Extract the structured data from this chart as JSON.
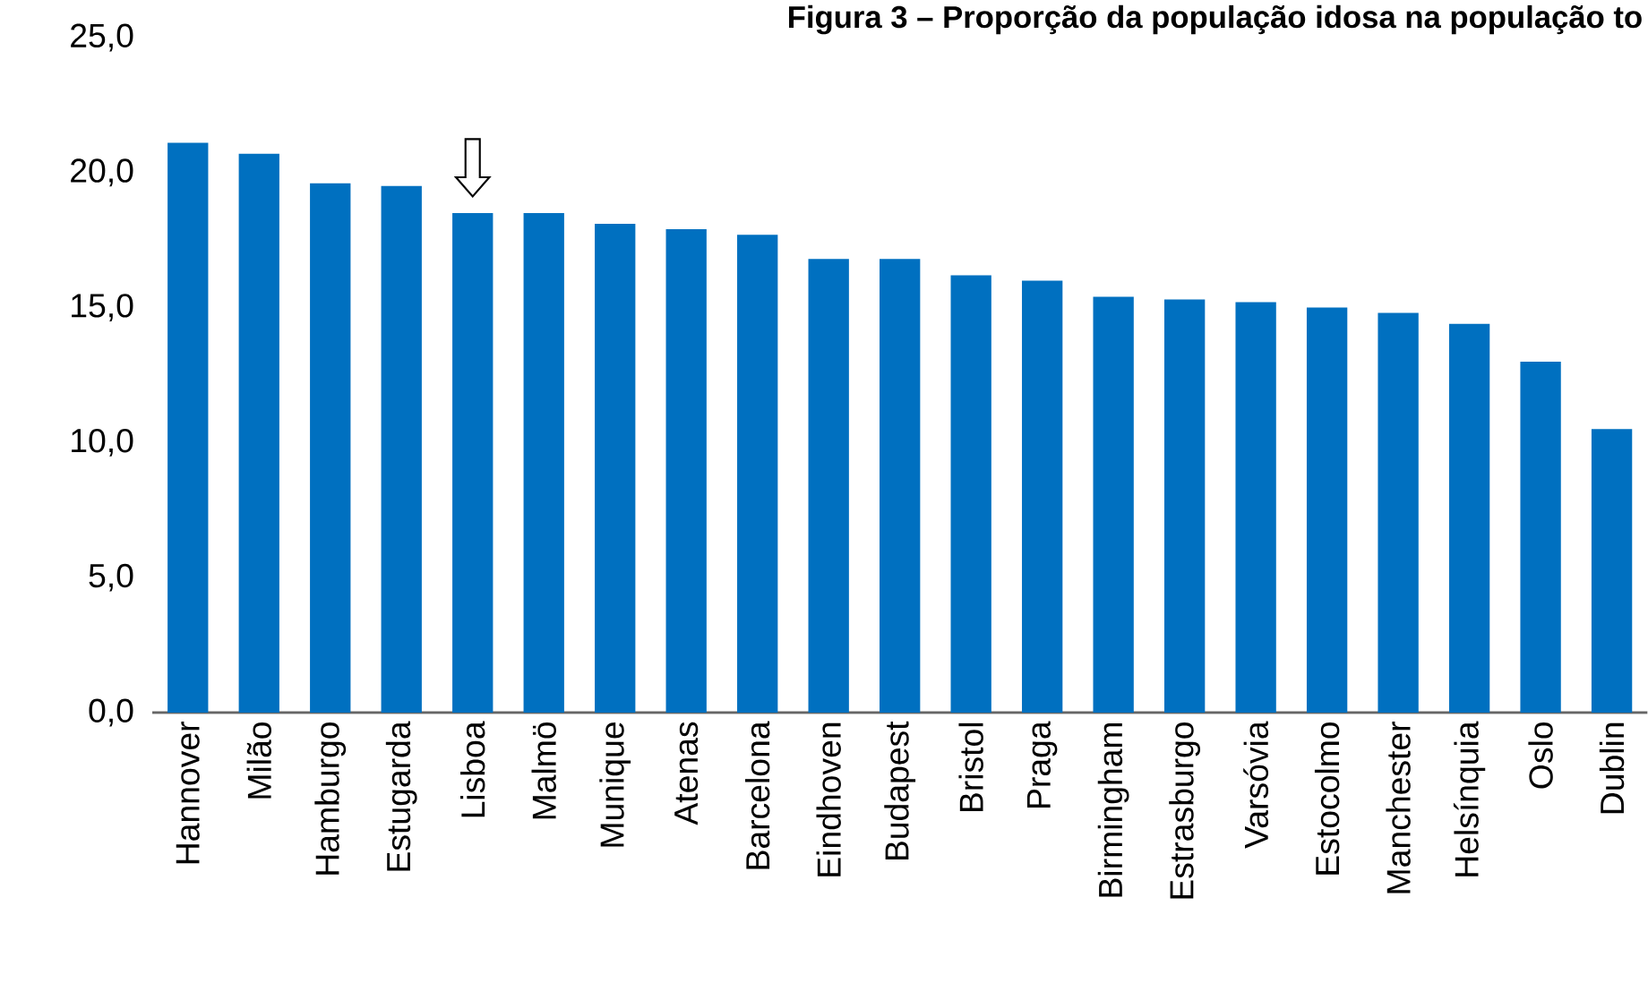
{
  "chart_data": {
    "type": "bar",
    "title": "Figura 3 – Proporção da população idosa na população to",
    "categories": [
      "Hannover",
      "Milão",
      "Hamburgo",
      "Estugarda",
      "Lisboa",
      "Malmö",
      "Munique",
      "Atenas",
      "Barcelona",
      "Eindhoven",
      "Budapest",
      "Bristol",
      "Praga",
      "Birmingham",
      "Estrasburgo",
      "Varsóvia",
      "Estocolmo",
      "Manchester",
      "Helsínquia",
      "Oslo",
      "Dublin"
    ],
    "values": [
      21.1,
      20.7,
      19.6,
      19.5,
      18.5,
      18.5,
      18.1,
      17.9,
      17.7,
      16.8,
      16.8,
      16.2,
      16.0,
      15.4,
      15.3,
      15.2,
      15.0,
      14.8,
      14.4,
      13.0,
      10.5
    ],
    "color": "#0070c0",
    "ylim": [
      0,
      25
    ],
    "yticks": [
      {
        "value": 0,
        "label": "0,0"
      },
      {
        "value": 5,
        "label": "5,0"
      },
      {
        "value": 10,
        "label": "10,0"
      },
      {
        "value": 15,
        "label": "15,0"
      },
      {
        "value": 20,
        "label": "20,0"
      },
      {
        "value": 25,
        "label": "25,0"
      }
    ],
    "grid": false
  }
}
